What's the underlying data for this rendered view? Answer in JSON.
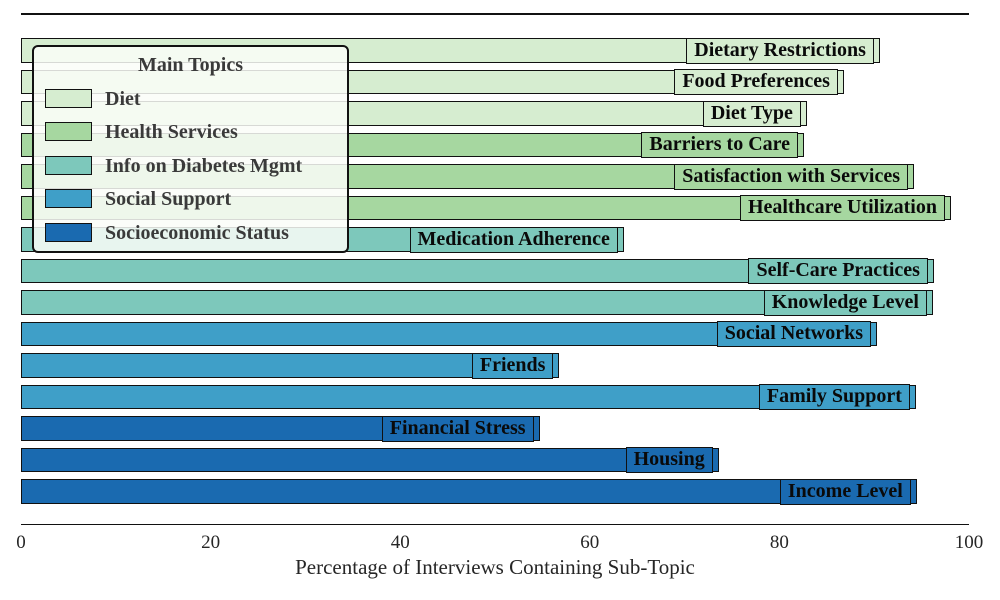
{
  "figure": {
    "xlabel": "Percentage of Interviews Containing Sub-Topic"
  },
  "legend": {
    "title": "Main Topics",
    "items": [
      {
        "label": "Diet",
        "color": "#d6edd0"
      },
      {
        "label": "Health Services",
        "color": "#a6d7a0"
      },
      {
        "label": "Info on Diabetes Mgmt",
        "color": "#7dc8bb"
      },
      {
        "label": "Social Support",
        "color": "#3f9fc8"
      },
      {
        "label": "Socioeconomic Status",
        "color": "#1a6ab0"
      }
    ]
  },
  "chart_data": {
    "type": "bar",
    "orientation": "horizontal",
    "title": "",
    "xlabel": "Percentage of Interviews Containing Sub-Topic",
    "ylabel": "",
    "xlim": [
      0,
      100
    ],
    "xticks": [
      0,
      20,
      40,
      60,
      80,
      100
    ],
    "grid": false,
    "legend_position": "upper left",
    "legend_title": "Main Topics",
    "groups": [
      {
        "name": "Diet",
        "color": "#d6edd0"
      },
      {
        "name": "Health Services",
        "color": "#a6d7a0"
      },
      {
        "name": "Info on Diabetes Mgmt",
        "color": "#7dc8bb"
      },
      {
        "name": "Social Support",
        "color": "#3f9fc8"
      },
      {
        "name": "Socioeconomic Status",
        "color": "#1a6ab0"
      }
    ],
    "bars": [
      {
        "label": "Dietary Restrictions",
        "group": "Diet",
        "value": 90.6
      },
      {
        "label": "Food Preferences",
        "group": "Diet",
        "value": 86.8
      },
      {
        "label": "Diet Type",
        "group": "Diet",
        "value": 82.9
      },
      {
        "label": "Barriers to Care",
        "group": "Health Services",
        "value": 82.6
      },
      {
        "label": "Satisfaction with Services",
        "group": "Health Services",
        "value": 94.2
      },
      {
        "label": "Healthcare Utilization",
        "group": "Health Services",
        "value": 98.1
      },
      {
        "label": "Medication Adherence",
        "group": "Info on Diabetes Mgmt",
        "value": 63.6
      },
      {
        "label": "Self-Care Practices",
        "group": "Info on Diabetes Mgmt",
        "value": 96.3
      },
      {
        "label": "Knowledge Level",
        "group": "Info on Diabetes Mgmt",
        "value": 96.2
      },
      {
        "label": "Social Networks",
        "group": "Social Support",
        "value": 90.3
      },
      {
        "label": "Friends",
        "group": "Social Support",
        "value": 56.8
      },
      {
        "label": "Family Support",
        "group": "Social Support",
        "value": 94.4
      },
      {
        "label": "Financial Stress",
        "group": "Socioeconomic Status",
        "value": 54.7
      },
      {
        "label": "Housing",
        "group": "Socioeconomic Status",
        "value": 73.6
      },
      {
        "label": "Income Level",
        "group": "Socioeconomic Status",
        "value": 94.5
      }
    ]
  }
}
